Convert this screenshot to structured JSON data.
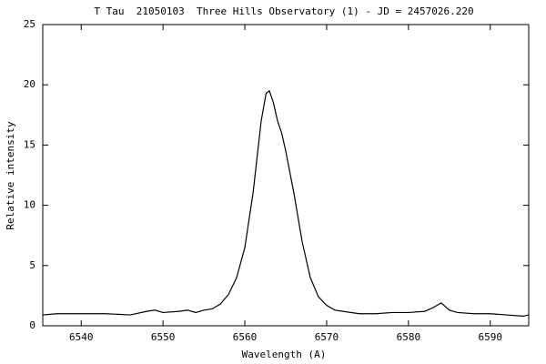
{
  "chart_data": {
    "type": "line",
    "title": "T Tau  21050103  Three Hills Observatory (1) - JD = 2457026.220",
    "xlabel": "Wavelength (A)",
    "ylabel": "Relative intensity",
    "x": [
      6535.3,
      6537,
      6540,
      6543,
      6546,
      6548,
      6549,
      6550,
      6552,
      6553,
      6554,
      6555,
      6556,
      6557,
      6558,
      6559,
      6560,
      6561,
      6562,
      6562.6,
      6563,
      6563.5,
      6564,
      6564.5,
      6565,
      6566,
      6567,
      6568,
      6569,
      6570,
      6571,
      6572,
      6574,
      6576,
      6578,
      6580,
      6582,
      6583,
      6584,
      6585,
      6586,
      6588,
      6590,
      6592,
      6594,
      6594.7
    ],
    "values": [
      0.9,
      1.0,
      1.0,
      1.0,
      0.9,
      1.2,
      1.3,
      1.1,
      1.2,
      1.3,
      1.1,
      1.3,
      1.4,
      1.8,
      2.6,
      4.0,
      6.5,
      11.0,
      17.0,
      19.3,
      19.5,
      18.5,
      17.0,
      16.0,
      14.5,
      11.0,
      7.0,
      4.0,
      2.4,
      1.7,
      1.3,
      1.2,
      1.0,
      1.0,
      1.1,
      1.1,
      1.2,
      1.5,
      1.9,
      1.3,
      1.1,
      1.0,
      1.0,
      0.9,
      0.8,
      0.9
    ],
    "color": "#000000",
    "xlim": [
      6535.3,
      6594.7
    ],
    "xticks": [
      6540,
      6550,
      6560,
      6570,
      6580,
      6590
    ],
    "ylim": [
      0,
      25
    ],
    "yticks": [
      0,
      5,
      10,
      15,
      20,
      25
    ],
    "grid": false
  }
}
